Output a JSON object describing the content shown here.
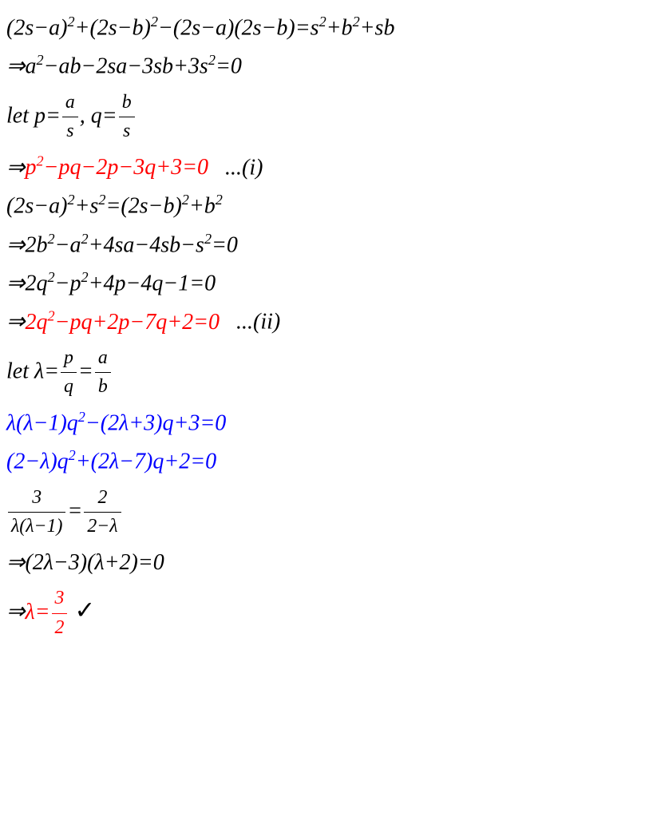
{
  "lines": [
    {
      "class": "",
      "html": "(2s−a)<sup>2</sup>+(2s−b)<sup>2</sup>−(2s−a)(2s−b)=s<sup>2</sup>+b<sup>2</sup>+sb"
    },
    {
      "class": "",
      "html": "⇒a<sup>2</sup>−ab−2sa−3sb+3s<sup>2</sup>=0"
    },
    {
      "class": "",
      "html": "let p=<span class=\"frac\"><span class=\"num\">a</span><span class=\"den\">s</span></span>, q=<span class=\"frac\"><span class=\"num\">b</span><span class=\"den\">s</span></span>"
    },
    {
      "class": "",
      "html": "⇒<span class=\"red\">p<sup>2</sup>−pq−2p−3q+3=0</span>&nbsp;&nbsp;&nbsp;...(i)"
    },
    {
      "class": "",
      "html": "(2s−a)<sup>2</sup>+s<sup>2</sup>=(2s−b)<sup>2</sup>+b<sup>2</sup>"
    },
    {
      "class": "",
      "html": "⇒2b<sup>2</sup>−a<sup>2</sup>+4sa−4sb−s<sup>2</sup>=0"
    },
    {
      "class": "",
      "html": "⇒2q<sup>2</sup>−p<sup>2</sup>+4p−4q−1=0"
    },
    {
      "class": "",
      "html": "⇒<span class=\"red\">2q<sup>2</sup>−pq+2p−7q+2=0</span>&nbsp;&nbsp;&nbsp;...(ii)"
    },
    {
      "class": "",
      "html": "let λ=<span class=\"frac\"><span class=\"num\">p</span><span class=\"den\">q</span></span>=<span class=\"frac\"><span class=\"num\">a</span><span class=\"den\">b</span></span>"
    },
    {
      "class": "blue",
      "html": "λ(λ−1)q<sup>2</sup>−(2λ+3)q+3=0"
    },
    {
      "class": "blue",
      "html": "(2−λ)q<sup>2</sup>+(2λ−7)q+2=0"
    },
    {
      "class": "",
      "html": "<span class=\"frac\"><span class=\"num\">3</span><span class=\"den\">λ(λ−1)</span></span>=<span class=\"frac\"><span class=\"num\">2</span><span class=\"den\">2−λ</span></span>"
    },
    {
      "class": "",
      "html": "⇒(2λ−3)(λ+2)=0"
    },
    {
      "class": "",
      "html": "⇒<span class=\"red\">λ=<span class=\"frac\"><span class=\"num\" style=\"border-color:#ff0000\">3</span><span class=\"den\">2</span></span></span> <span class=\"check\">✓</span>"
    }
  ]
}
